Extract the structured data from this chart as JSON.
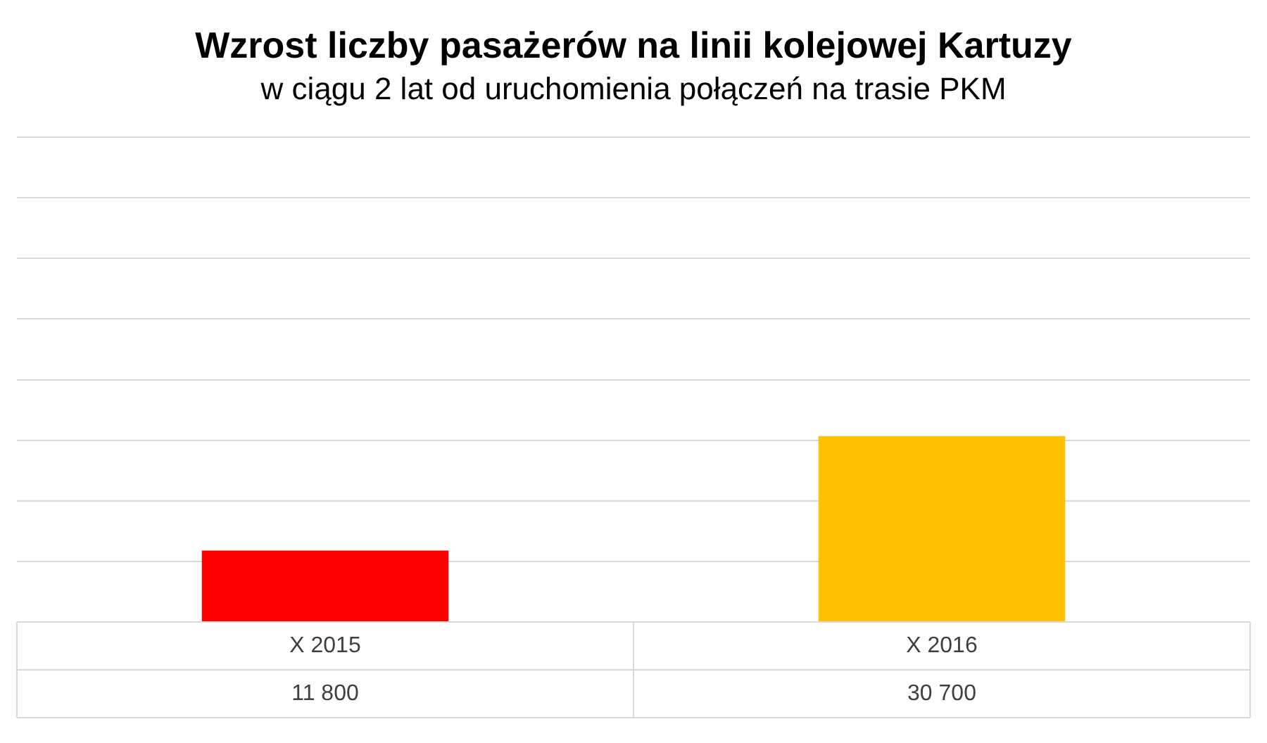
{
  "chart_data": {
    "type": "bar",
    "title": "Wzrost liczby pasażerów na linii kolejowej Kartuzy",
    "subtitle": "w ciągu 2 lat od uruchomienia połączeń na trasie PKM",
    "categories": [
      "X 2015",
      "X 2016"
    ],
    "values": [
      11800,
      30700
    ],
    "colors": [
      "#ff0000",
      "#ffc000"
    ],
    "value_labels": [
      "11 800",
      "30 700"
    ],
    "ylim": [
      0,
      80000
    ],
    "grid": "y",
    "legend": false
  }
}
